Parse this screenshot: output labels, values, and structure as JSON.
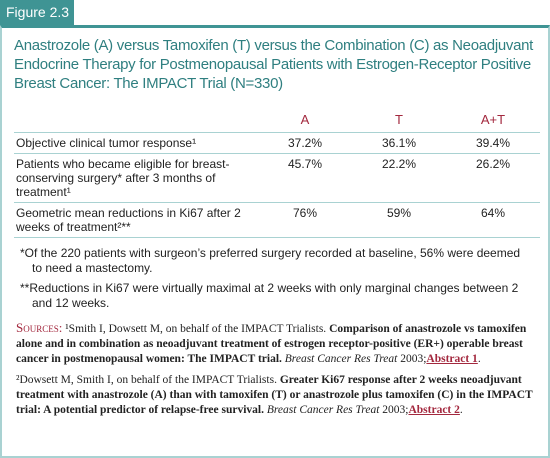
{
  "figure_label": "Figure 2.3",
  "title": "Anastrozole (A) versus Tamoxifen (T) versus the Combination (C) as Neoadjuvant Endocrine Therapy for Postmenopausal Patients with Estrogen-Receptor Positive Breast Cancer: The IMPACT Trial (N=330)",
  "table": {
    "columns": [
      "A",
      "T",
      "A+T"
    ],
    "rows": [
      {
        "label": "Objective clinical tumor response¹",
        "cells": [
          "37.2%",
          "36.1%",
          "39.4%"
        ]
      },
      {
        "label": "Patients who became eligible for breast-conserving surgery* after 3 months of treatment¹",
        "cells": [
          "45.7%",
          "22.2%",
          "26.2%"
        ]
      },
      {
        "label": "Geometric mean reductions in Ki67 after 2 weeks of treatment²**",
        "cells": [
          "76%",
          "59%",
          "64%"
        ]
      }
    ]
  },
  "footnotes": [
    "*Of the 220 patients with surgeon’s preferred surgery recorded at baseline, 56% were deemed to need a mastectomy.",
    "**Reductions in Ki67 were virtually maximal at 2 weeks with only marginal changes between 2 and 12 weeks."
  ],
  "sources": {
    "heading": "Sources:",
    "items": [
      {
        "authors": "¹Smith I, Dowsett M, on behalf of the IMPACT Trialists.",
        "title": "Comparison of anastrozole vs tamoxifen alone and in combination as neoadjuvant treatment of estrogen receptor-positive (ER+) operable breast cancer in postmenopausal women: The IMPACT trial.",
        "journal": "Breast Cancer Res Treat",
        "year": "2003;",
        "link": "Abstract 1"
      },
      {
        "authors": "²Dowsett M, Smith I, on behalf of the IMPACT Trialists.",
        "title": "Greater Ki67 response after 2 weeks neoadjuvant treatment with anastrozole (A) than with tamoxifen (T) or anastrozole plus tamoxifen (C) in the IMPACT trial: A potential predictor of relapse-free survival.",
        "journal": "Breast Cancer Res Treat",
        "year": "2003;",
        "link": "Abstract 2"
      }
    ]
  }
}
